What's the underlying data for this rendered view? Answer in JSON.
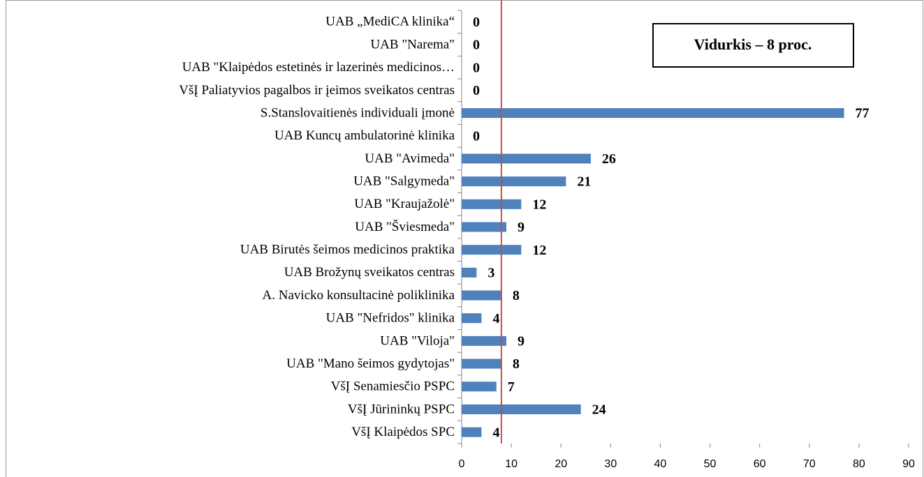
{
  "chart_data": {
    "type": "hbar",
    "categories": [
      "UAB „MediCA klinika“",
      "UAB \"Narema\"",
      "UAB \"Klaipėdos estetinės ir lazerinės medicinos…",
      "VšĮ Paliatyvios pagalbos ir įeimos sveikatos centras",
      "S.Stanslovaitienės individuali įmonė",
      "UAB Kuncų ambulatorinė klinika",
      "UAB \"Avimeda\"",
      "UAB \"Salgymeda\"",
      "UAB \"Kraujažolė\"",
      "UAB \"Šviesmeda\"",
      "UAB Birutės šeimos medicinos praktika",
      "UAB Brožynų sveikatos centras",
      "A. Navicko konsultacinė poliklinika",
      "UAB \"Nefridos\" klinika",
      "UAB \"Viloja\"",
      "UAB \"Mano šeimos gydytojas\"",
      "VšĮ Senamiesčio PSPC",
      "VšĮ Jūrininkų PSPC",
      "VšĮ Klaipėdos SPC"
    ],
    "values": [
      0,
      0,
      0,
      0,
      77,
      0,
      26,
      21,
      12,
      9,
      12,
      3,
      8,
      4,
      9,
      8,
      7,
      24,
      4
    ],
    "color": "#4f81bd",
    "xlim": [
      0,
      90
    ],
    "xticks": [
      0,
      10,
      20,
      30,
      40,
      50,
      60,
      70,
      80,
      90
    ],
    "average": 8,
    "average_color": "#c0504d",
    "annotation": "Vidurkis – 8 proc."
  }
}
